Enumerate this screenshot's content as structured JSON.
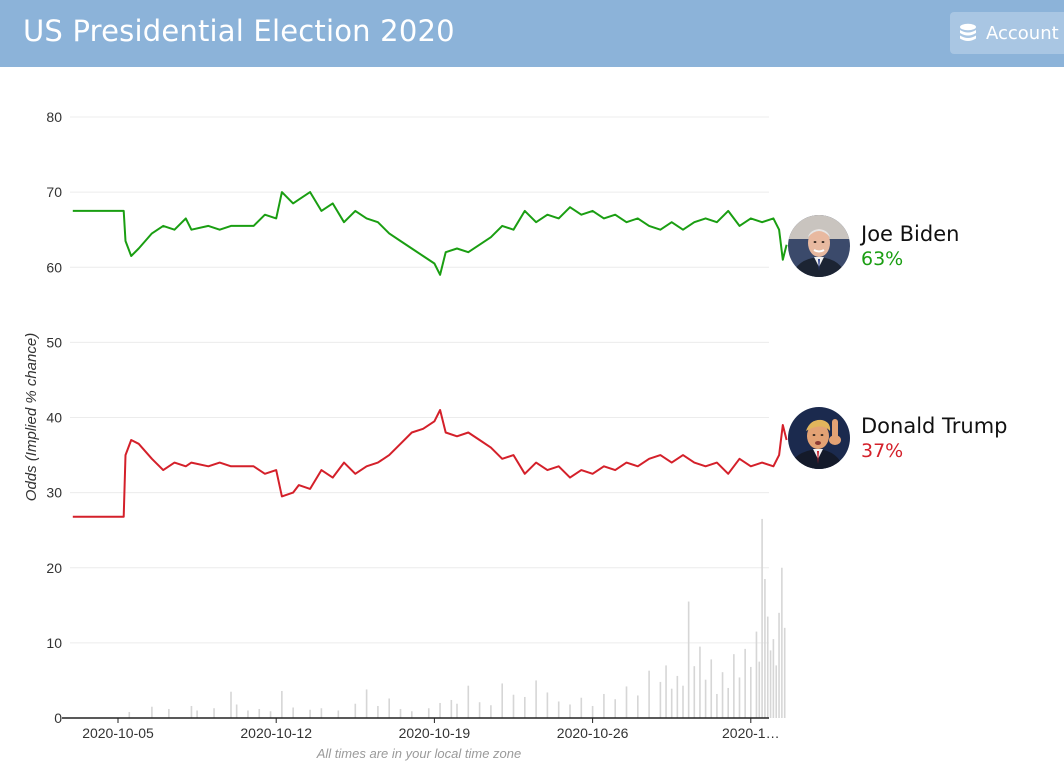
{
  "header": {
    "title": "US Presidential Election 2020",
    "account_label": "Account",
    "account_icon": "database-icon"
  },
  "candidates": [
    {
      "name": "Joe Biden",
      "pct": "63%",
      "color": "#1a9e12",
      "avatar_icon": "joe-biden-photo"
    },
    {
      "name": "Donald Trump",
      "pct": "37%",
      "color": "#d4202a",
      "avatar_icon": "donald-trump-photo"
    }
  ],
  "chart_data": {
    "type": "line",
    "ylabel": "Odds (Implied % chance)",
    "xlabel": "",
    "ylim": [
      0,
      80
    ],
    "yticks": [
      "0",
      "10",
      "20",
      "30",
      "40",
      "50",
      "60",
      "70",
      "80"
    ],
    "xticks": [
      "2020-10-05",
      "2020-10-12",
      "2020-10-19",
      "2020-10-26",
      "2020-1…"
    ],
    "footnote": "All times are in your local time zone",
    "grid": true,
    "series": [
      {
        "name": "Joe Biden",
        "color": "#1a9e12",
        "points": [
          [
            "2020-10-03T00:00",
            67.5
          ],
          [
            "2020-10-05T06:00",
            67.5
          ],
          [
            "2020-10-05T08:00",
            63.5
          ],
          [
            "2020-10-05T14:00",
            61.5
          ],
          [
            "2020-10-05T22:00",
            62.5
          ],
          [
            "2020-10-06T12:00",
            64.5
          ],
          [
            "2020-10-07T00:00",
            65.5
          ],
          [
            "2020-10-07T12:00",
            65.0
          ],
          [
            "2020-10-08T00:00",
            66.5
          ],
          [
            "2020-10-08T06:00",
            65.0
          ],
          [
            "2020-10-09T00:00",
            65.5
          ],
          [
            "2020-10-09T12:00",
            65.0
          ],
          [
            "2020-10-10T00:00",
            65.5
          ],
          [
            "2020-10-11T00:00",
            65.5
          ],
          [
            "2020-10-11T12:00",
            67.0
          ],
          [
            "2020-10-12T00:00",
            66.5
          ],
          [
            "2020-10-12T06:00",
            70.0
          ],
          [
            "2020-10-12T18:00",
            68.5
          ],
          [
            "2020-10-13T00:00",
            69.0
          ],
          [
            "2020-10-13T12:00",
            70.0
          ],
          [
            "2020-10-14T00:00",
            67.5
          ],
          [
            "2020-10-14T12:00",
            68.5
          ],
          [
            "2020-10-15T00:00",
            66.0
          ],
          [
            "2020-10-15T12:00",
            67.5
          ],
          [
            "2020-10-16T00:00",
            66.5
          ],
          [
            "2020-10-16T12:00",
            66.0
          ],
          [
            "2020-10-17T00:00",
            64.5
          ],
          [
            "2020-10-17T12:00",
            63.5
          ],
          [
            "2020-10-18T00:00",
            62.5
          ],
          [
            "2020-10-18T12:00",
            61.5
          ],
          [
            "2020-10-19T00:00",
            60.5
          ],
          [
            "2020-10-19T06:00",
            59.0
          ],
          [
            "2020-10-19T12:00",
            62.0
          ],
          [
            "2020-10-20T00:00",
            62.5
          ],
          [
            "2020-10-20T12:00",
            62.0
          ],
          [
            "2020-10-21T00:00",
            63.0
          ],
          [
            "2020-10-21T12:00",
            64.0
          ],
          [
            "2020-10-22T00:00",
            65.5
          ],
          [
            "2020-10-22T12:00",
            65.0
          ],
          [
            "2020-10-23T00:00",
            67.5
          ],
          [
            "2020-10-23T12:00",
            66.0
          ],
          [
            "2020-10-24T00:00",
            67.0
          ],
          [
            "2020-10-24T12:00",
            66.5
          ],
          [
            "2020-10-25T00:00",
            68.0
          ],
          [
            "2020-10-25T12:00",
            67.0
          ],
          [
            "2020-10-26T00:00",
            67.5
          ],
          [
            "2020-10-26T12:00",
            66.5
          ],
          [
            "2020-10-27T00:00",
            67.0
          ],
          [
            "2020-10-27T12:00",
            66.0
          ],
          [
            "2020-10-28T00:00",
            66.5
          ],
          [
            "2020-10-28T12:00",
            65.5
          ],
          [
            "2020-10-29T00:00",
            65.0
          ],
          [
            "2020-10-29T12:00",
            66.0
          ],
          [
            "2020-10-30T00:00",
            65.0
          ],
          [
            "2020-10-30T12:00",
            66.0
          ],
          [
            "2020-10-31T00:00",
            66.5
          ],
          [
            "2020-10-31T12:00",
            66.0
          ],
          [
            "2020-11-01T00:00",
            67.5
          ],
          [
            "2020-11-01T12:00",
            65.5
          ],
          [
            "2020-11-02T00:00",
            66.5
          ],
          [
            "2020-11-02T12:00",
            66.0
          ],
          [
            "2020-11-03T00:00",
            66.5
          ],
          [
            "2020-11-03T06:00",
            65.0
          ],
          [
            "2020-11-03T10:00",
            61.0
          ],
          [
            "2020-11-03T14:00",
            63.0
          ]
        ]
      },
      {
        "name": "Donald Trump",
        "color": "#d4202a",
        "points": [
          [
            "2020-10-03T00:00",
            26.8
          ],
          [
            "2020-10-05T06:00",
            26.8
          ],
          [
            "2020-10-05T08:00",
            35.0
          ],
          [
            "2020-10-05T14:00",
            37.0
          ],
          [
            "2020-10-05T22:00",
            36.5
          ],
          [
            "2020-10-06T12:00",
            34.5
          ],
          [
            "2020-10-07T00:00",
            33.0
          ],
          [
            "2020-10-07T12:00",
            34.0
          ],
          [
            "2020-10-08T00:00",
            33.5
          ],
          [
            "2020-10-08T06:00",
            34.0
          ],
          [
            "2020-10-09T00:00",
            33.5
          ],
          [
            "2020-10-09T12:00",
            34.0
          ],
          [
            "2020-10-10T00:00",
            33.5
          ],
          [
            "2020-10-11T00:00",
            33.5
          ],
          [
            "2020-10-11T12:00",
            32.5
          ],
          [
            "2020-10-12T00:00",
            33.0
          ],
          [
            "2020-10-12T06:00",
            29.5
          ],
          [
            "2020-10-12T18:00",
            30.0
          ],
          [
            "2020-10-13T00:00",
            31.0
          ],
          [
            "2020-10-13T12:00",
            30.5
          ],
          [
            "2020-10-14T00:00",
            33.0
          ],
          [
            "2020-10-14T12:00",
            32.0
          ],
          [
            "2020-10-15T00:00",
            34.0
          ],
          [
            "2020-10-15T12:00",
            32.5
          ],
          [
            "2020-10-16T00:00",
            33.5
          ],
          [
            "2020-10-16T12:00",
            34.0
          ],
          [
            "2020-10-17T00:00",
            35.0
          ],
          [
            "2020-10-17T12:00",
            36.5
          ],
          [
            "2020-10-18T00:00",
            38.0
          ],
          [
            "2020-10-18T12:00",
            38.5
          ],
          [
            "2020-10-19T00:00",
            39.5
          ],
          [
            "2020-10-19T06:00",
            41.0
          ],
          [
            "2020-10-19T12:00",
            38.0
          ],
          [
            "2020-10-20T00:00",
            37.5
          ],
          [
            "2020-10-20T12:00",
            38.0
          ],
          [
            "2020-10-21T00:00",
            37.0
          ],
          [
            "2020-10-21T12:00",
            36.0
          ],
          [
            "2020-10-22T00:00",
            34.5
          ],
          [
            "2020-10-22T12:00",
            35.0
          ],
          [
            "2020-10-23T00:00",
            32.5
          ],
          [
            "2020-10-23T12:00",
            34.0
          ],
          [
            "2020-10-24T00:00",
            33.0
          ],
          [
            "2020-10-24T12:00",
            33.5
          ],
          [
            "2020-10-25T00:00",
            32.0
          ],
          [
            "2020-10-25T12:00",
            33.0
          ],
          [
            "2020-10-26T00:00",
            32.5
          ],
          [
            "2020-10-26T12:00",
            33.5
          ],
          [
            "2020-10-27T00:00",
            33.0
          ],
          [
            "2020-10-27T12:00",
            34.0
          ],
          [
            "2020-10-28T00:00",
            33.5
          ],
          [
            "2020-10-28T12:00",
            34.5
          ],
          [
            "2020-10-29T00:00",
            35.0
          ],
          [
            "2020-10-29T12:00",
            34.0
          ],
          [
            "2020-10-30T00:00",
            35.0
          ],
          [
            "2020-10-30T12:00",
            34.0
          ],
          [
            "2020-10-31T00:00",
            33.5
          ],
          [
            "2020-10-31T12:00",
            34.0
          ],
          [
            "2020-11-01T00:00",
            32.5
          ],
          [
            "2020-11-01T12:00",
            34.5
          ],
          [
            "2020-11-02T00:00",
            33.5
          ],
          [
            "2020-11-02T12:00",
            34.0
          ],
          [
            "2020-11-03T00:00",
            33.5
          ],
          [
            "2020-11-03T06:00",
            35.0
          ],
          [
            "2020-11-03T10:00",
            39.0
          ],
          [
            "2020-11-03T14:00",
            37.0
          ]
        ]
      }
    ],
    "volume_series": {
      "color": "#d6d6d6",
      "points": [
        [
          "2020-10-05T12:00",
          0.8
        ],
        [
          "2020-10-06T12:00",
          1.5
        ],
        [
          "2020-10-07T06:00",
          1.2
        ],
        [
          "2020-10-08T06:00",
          1.6
        ],
        [
          "2020-10-08T12:00",
          1.0
        ],
        [
          "2020-10-09T06:00",
          1.3
        ],
        [
          "2020-10-10T00:00",
          3.5
        ],
        [
          "2020-10-10T06:00",
          1.8
        ],
        [
          "2020-10-10T18:00",
          1.0
        ],
        [
          "2020-10-11T06:00",
          1.2
        ],
        [
          "2020-10-11T18:00",
          0.9
        ],
        [
          "2020-10-12T06:00",
          3.6
        ],
        [
          "2020-10-12T18:00",
          1.4
        ],
        [
          "2020-10-13T12:00",
          1.1
        ],
        [
          "2020-10-14T00:00",
          1.3
        ],
        [
          "2020-10-14T18:00",
          1.0
        ],
        [
          "2020-10-15T12:00",
          1.9
        ],
        [
          "2020-10-16T00:00",
          3.8
        ],
        [
          "2020-10-16T12:00",
          1.6
        ],
        [
          "2020-10-17T00:00",
          2.6
        ],
        [
          "2020-10-17T12:00",
          1.2
        ],
        [
          "2020-10-18T00:00",
          0.9
        ],
        [
          "2020-10-18T18:00",
          1.3
        ],
        [
          "2020-10-19T06:00",
          2.0
        ],
        [
          "2020-10-19T18:00",
          2.4
        ],
        [
          "2020-10-20T00:00",
          1.9
        ],
        [
          "2020-10-20T12:00",
          4.3
        ],
        [
          "2020-10-21T00:00",
          2.1
        ],
        [
          "2020-10-21T12:00",
          1.7
        ],
        [
          "2020-10-22T00:00",
          4.6
        ],
        [
          "2020-10-22T12:00",
          3.1
        ],
        [
          "2020-10-23T00:00",
          2.8
        ],
        [
          "2020-10-23T12:00",
          5.0
        ],
        [
          "2020-10-24T00:00",
          3.4
        ],
        [
          "2020-10-24T12:00",
          2.2
        ],
        [
          "2020-10-25T00:00",
          1.8
        ],
        [
          "2020-10-25T12:00",
          2.7
        ],
        [
          "2020-10-26T00:00",
          1.6
        ],
        [
          "2020-10-26T12:00",
          3.2
        ],
        [
          "2020-10-27T00:00",
          2.5
        ],
        [
          "2020-10-27T12:00",
          4.2
        ],
        [
          "2020-10-28T00:00",
          3.0
        ],
        [
          "2020-10-28T12:00",
          6.3
        ],
        [
          "2020-10-29T00:00",
          4.8
        ],
        [
          "2020-10-29T06:00",
          7.0
        ],
        [
          "2020-10-29T12:00",
          3.9
        ],
        [
          "2020-10-29T18:00",
          5.6
        ],
        [
          "2020-10-30T00:00",
          4.3
        ],
        [
          "2020-10-30T06:00",
          15.5
        ],
        [
          "2020-10-30T12:00",
          6.9
        ],
        [
          "2020-10-30T18:00",
          9.5
        ],
        [
          "2020-10-31T00:00",
          5.1
        ],
        [
          "2020-10-31T06:00",
          7.8
        ],
        [
          "2020-10-31T12:00",
          3.2
        ],
        [
          "2020-10-31T18:00",
          6.1
        ],
        [
          "2020-11-01T00:00",
          4.0
        ],
        [
          "2020-11-01T06:00",
          8.5
        ],
        [
          "2020-11-01T12:00",
          5.4
        ],
        [
          "2020-11-01T18:00",
          9.2
        ],
        [
          "2020-11-02T00:00",
          6.8
        ],
        [
          "2020-11-02T06:00",
          11.5
        ],
        [
          "2020-11-02T09:00",
          7.5
        ],
        [
          "2020-11-02T12:00",
          26.5
        ],
        [
          "2020-11-02T15:00",
          18.5
        ],
        [
          "2020-11-02T18:00",
          13.5
        ],
        [
          "2020-11-02T21:00",
          9.0
        ],
        [
          "2020-11-03T00:00",
          10.5
        ],
        [
          "2020-11-03T03:00",
          7.0
        ],
        [
          "2020-11-03T06:00",
          14.0
        ],
        [
          "2020-11-03T09:00",
          20.0
        ],
        [
          "2020-11-03T12:00",
          12.0
        ]
      ]
    }
  }
}
